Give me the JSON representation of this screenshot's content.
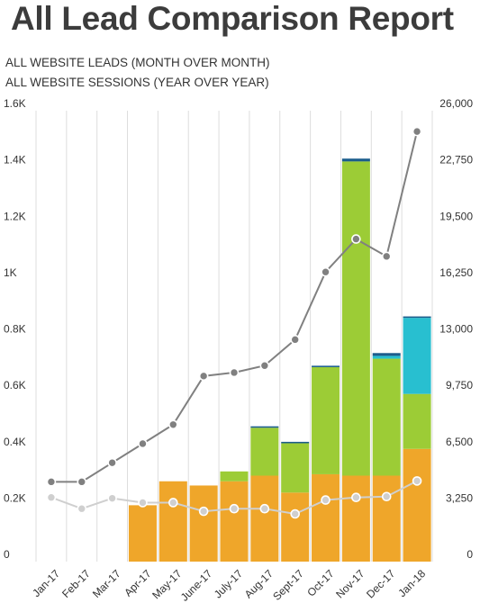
{
  "title": "All Lead Comparison Report",
  "subtitle_1": "ALL WEBSITE LEADS (MONTH OVER MONTH)",
  "subtitle_2": "ALL WEBSITE SESSIONS (YEAR OVER YEAR)",
  "colors": {
    "orange": "#efa62a",
    "green": "#9ccc36",
    "cyan": "#28bfd0",
    "dark_blue": "#1b5d8c",
    "line_dark": "#808080",
    "line_light": "#cfcfcf",
    "grid": "#dddddd"
  },
  "chart_data": {
    "type": "bar",
    "stacked": true,
    "categories": [
      "Jan-17",
      "Feb-17",
      "Mar-17",
      "Apr-17",
      "May-17",
      "June-17",
      "July-17",
      "Aug-17",
      "Sept-17",
      "Oct-17",
      "Nov-17",
      "Dec-17",
      "Jan-18"
    ],
    "ylim": [
      0,
      1600
    ],
    "y_tick_labels": [
      "0",
      "0.2K",
      "0.4K",
      "0.6K",
      "0.8K",
      "1K",
      "1.2K",
      "1.4K",
      "1.6K"
    ],
    "y2lim": [
      0,
      26000
    ],
    "y2_tick_labels": [
      "0",
      "3,250",
      "6,500",
      "9,750",
      "13,000",
      "16,250",
      "19,500",
      "22,750",
      "26,000"
    ],
    "grid": "vertical",
    "bar_series": [
      {
        "color": "#efa62a",
        "values": [
          0,
          0,
          0,
          200,
          285,
          270,
          285,
          305,
          245,
          310,
          305,
          305,
          400
        ]
      },
      {
        "color": "#9ccc36",
        "values": [
          0,
          0,
          0,
          0,
          0,
          0,
          35,
          170,
          175,
          380,
          1115,
          415,
          195
        ]
      },
      {
        "color": "#28bfd0",
        "values": [
          0,
          0,
          0,
          0,
          0,
          0,
          0,
          0,
          0,
          0,
          0,
          10,
          270
        ]
      },
      {
        "color": "#1b5d8c",
        "values": [
          0,
          0,
          0,
          0,
          0,
          0,
          0,
          5,
          5,
          5,
          10,
          10,
          5
        ]
      }
    ],
    "line_series": [
      {
        "axis": "right",
        "color": "#808080",
        "values": [
          4600,
          4600,
          5700,
          6800,
          7900,
          10700,
          10900,
          11300,
          12800,
          16700,
          18600,
          17600,
          24800
        ]
      },
      {
        "axis": "right",
        "color": "#cfcfcf",
        "values": [
          3700,
          3050,
          3650,
          3400,
          3400,
          2900,
          3050,
          3050,
          2750,
          3550,
          3700,
          3750,
          4650
        ]
      }
    ]
  }
}
